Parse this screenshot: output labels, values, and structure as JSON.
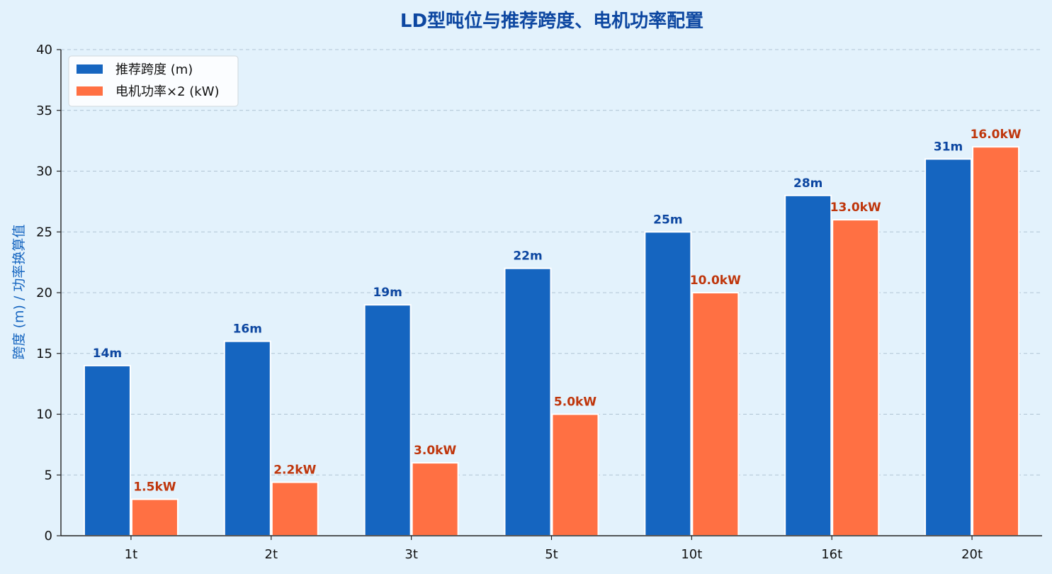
{
  "chart_data": {
    "type": "bar",
    "title": "LD型吨位与推荐跨度、电机功率配置",
    "ylabel": "跨度 (m) / 功率换算值",
    "xlabel": "",
    "categories": [
      "1t",
      "2t",
      "3t",
      "5t",
      "10t",
      "16t",
      "20t"
    ],
    "ylim": [
      0,
      40
    ],
    "yticks": [
      0,
      5,
      10,
      15,
      20,
      25,
      30,
      35,
      40
    ],
    "grid": "horizontal dashed",
    "legend_position": "top-left",
    "series": [
      {
        "name": "推荐跨度 (m)",
        "color": "#1565c0",
        "values": [
          14,
          16,
          19,
          22,
          25,
          28,
          31
        ],
        "labels": [
          "14m",
          "16m",
          "19m",
          "22m",
          "25m",
          "28m",
          "31m"
        ]
      },
      {
        "name": "电机功率×2 (kW)",
        "color": "#ff7043",
        "values": [
          3,
          4.4,
          6,
          10,
          20,
          26,
          32
        ],
        "labels": [
          "1.5kW",
          "2.2kW",
          "3.0kW",
          "5.0kW",
          "10.0kW",
          "13.0kW",
          "16.0kW"
        ]
      }
    ]
  }
}
